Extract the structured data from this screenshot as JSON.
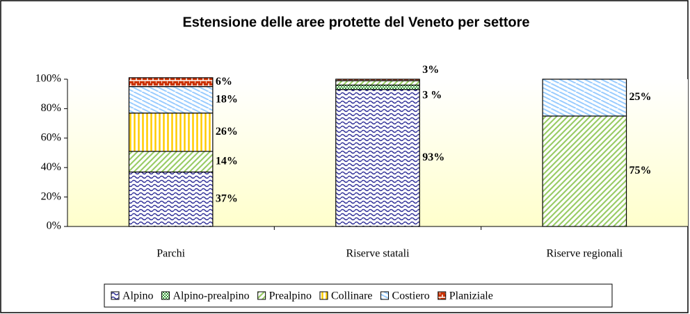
{
  "chart_data": {
    "type": "stacked_bar",
    "title": "Estensione delle aree protette del Veneto per settore",
    "categories": [
      "Parchi",
      "Riserve statali",
      "Riserve regionali"
    ],
    "series": [
      {
        "name": "Alpino",
        "color": "#333399",
        "values": [
          37,
          93,
          0
        ],
        "value_labels": [
          "37%",
          "93%",
          null
        ]
      },
      {
        "name": "Alpino-prealpino",
        "color": "#339933",
        "values": [
          0,
          3,
          0
        ],
        "value_labels": [
          null,
          "3 %",
          null
        ]
      },
      {
        "name": "Prealpino",
        "color": "#99cc66",
        "values": [
          14,
          3,
          75
        ],
        "value_labels": [
          "14%",
          "3%",
          "75%"
        ]
      },
      {
        "name": "Collinare",
        "color": "#ffcc00",
        "values": [
          26,
          0,
          0
        ],
        "value_labels": [
          "26%",
          null,
          null
        ]
      },
      {
        "name": "Costiero",
        "color": "#99ccff",
        "values": [
          18,
          0,
          25
        ],
        "value_labels": [
          "18%",
          null,
          "25%"
        ]
      },
      {
        "name": "Planiziale",
        "color": "#cc3300",
        "values": [
          6,
          1,
          0
        ],
        "value_labels": [
          "6%",
          null,
          null
        ]
      }
    ],
    "ylim": [
      0,
      100
    ],
    "yticks": [
      {
        "value": 0,
        "label": "0%"
      },
      {
        "value": 20,
        "label": "20%"
      },
      {
        "value": 40,
        "label": "40%"
      },
      {
        "value": 60,
        "label": "60%"
      },
      {
        "value": 80,
        "label": "80%"
      },
      {
        "value": 100,
        "label": "100%"
      }
    ],
    "legend": "bottom"
  }
}
